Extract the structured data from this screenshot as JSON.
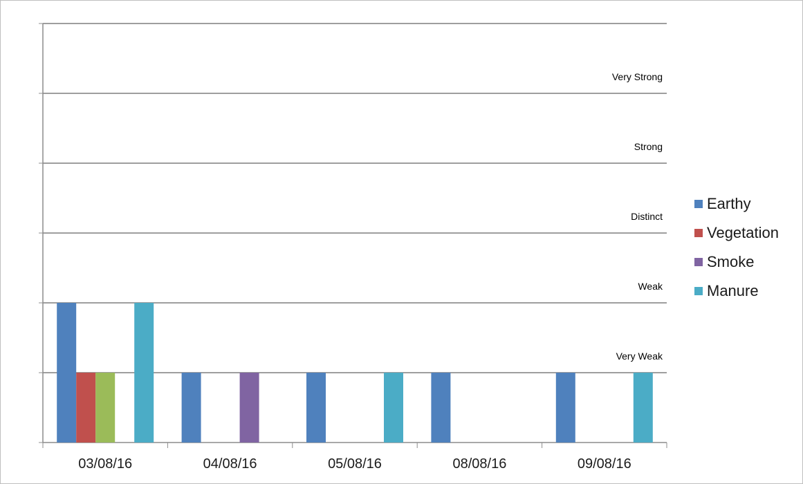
{
  "chart_data": {
    "type": "bar",
    "categories": [
      "03/08/16",
      "04/08/16",
      "05/08/16",
      "08/08/16",
      "09/08/16"
    ],
    "ylim": [
      0,
      6
    ],
    "levels": [
      "Very Weak",
      "Weak",
      "Distinct",
      "Strong",
      "Very Strong"
    ],
    "grid": true,
    "legend_position": "right",
    "series": [
      {
        "name": "Earthy",
        "color": "#4f81bd",
        "values": [
          2,
          1,
          1,
          1,
          1
        ]
      },
      {
        "name": "Vegetation",
        "color": "#c0504d",
        "values": [
          1,
          0,
          0,
          0,
          0
        ]
      },
      {
        "name": "",
        "color": "#9bbb59",
        "values": [
          1,
          0,
          0,
          0,
          0
        ]
      },
      {
        "name": "Smoke",
        "color": "#8064a2",
        "values": [
          0,
          1,
          0,
          0,
          0
        ]
      },
      {
        "name": "Manure",
        "color": "#4bacc6",
        "values": [
          2,
          0,
          1,
          0,
          1
        ]
      }
    ],
    "legend": [
      {
        "name": "Earthy",
        "color": "#4f81bd"
      },
      {
        "name": "Vegetation",
        "color": "#c0504d"
      },
      {
        "name": "Smoke",
        "color": "#8064a2"
      },
      {
        "name": "Manure",
        "color": "#4bacc6"
      }
    ]
  }
}
